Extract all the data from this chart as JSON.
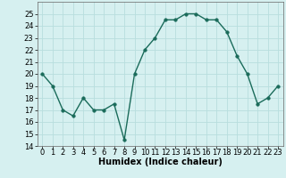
{
  "x": [
    0,
    1,
    2,
    3,
    4,
    5,
    6,
    7,
    8,
    9,
    10,
    11,
    12,
    13,
    14,
    15,
    16,
    17,
    18,
    19,
    20,
    21,
    22,
    23
  ],
  "y": [
    20,
    19,
    17,
    16.5,
    18,
    17,
    17,
    17.5,
    14.5,
    20,
    22,
    23,
    24.5,
    24.5,
    25,
    25,
    24.5,
    24.5,
    23.5,
    21.5,
    20,
    17.5,
    18,
    19
  ],
  "line_color": "#1a6b5a",
  "marker_color": "#1a6b5a",
  "bg_color": "#d6f0f0",
  "grid_color": "#b8dede",
  "xlabel": "Humidex (Indice chaleur)",
  "xlabel_fontsize": 7,
  "ylim": [
    14,
    26
  ],
  "yticks": [
    14,
    15,
    16,
    17,
    18,
    19,
    20,
    21,
    22,
    23,
    24,
    25
  ],
  "xticks": [
    0,
    1,
    2,
    3,
    4,
    5,
    6,
    7,
    8,
    9,
    10,
    11,
    12,
    13,
    14,
    15,
    16,
    17,
    18,
    19,
    20,
    21,
    22,
    23
  ],
  "xlim": [
    -0.5,
    23.5
  ],
  "tick_fontsize": 6,
  "line_width": 1.0,
  "marker_size": 2.5
}
